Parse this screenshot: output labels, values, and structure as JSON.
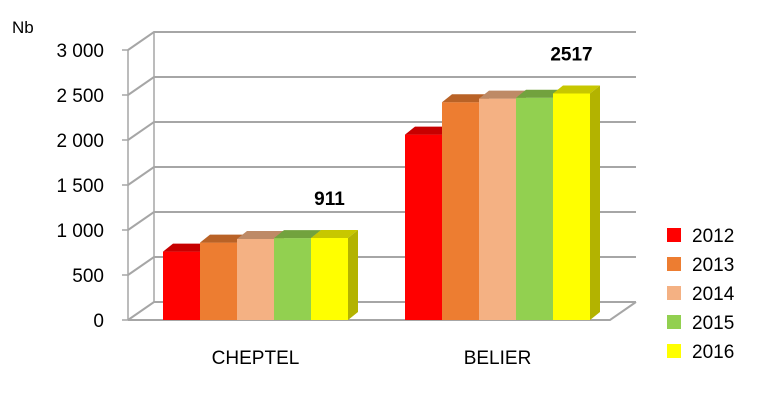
{
  "chart_data": {
    "type": "bar",
    "style": "3d-clustered-column",
    "ylabel": "Nb",
    "ylim": [
      0,
      3000
    ],
    "yticks": [
      0,
      500,
      1000,
      1500,
      2000,
      2500,
      3000
    ],
    "ytick_labels": [
      "0",
      "500",
      "1 000",
      "1 500",
      "2 000",
      "2 500",
      "3 000"
    ],
    "grid": true,
    "legend": "right",
    "categories": [
      "CHEPTEL",
      "BELIER"
    ],
    "series": [
      {
        "name": "2012",
        "color": "#ff0000",
        "values": [
          760,
          2060
        ]
      },
      {
        "name": "2013",
        "color": "#ed7d31",
        "values": [
          860,
          2420
        ]
      },
      {
        "name": "2014",
        "color": "#f4b183",
        "values": [
          900,
          2460
        ]
      },
      {
        "name": "2015",
        "color": "#92d050",
        "values": [
          910,
          2470
        ]
      },
      {
        "name": "2016",
        "color": "#ffff00",
        "values": [
          911,
          2517
        ]
      }
    ],
    "data_labels": [
      {
        "category": "CHEPTEL",
        "series": "2016",
        "text": "911"
      },
      {
        "category": "BELIER",
        "series": "2016",
        "text": "2517"
      }
    ]
  }
}
